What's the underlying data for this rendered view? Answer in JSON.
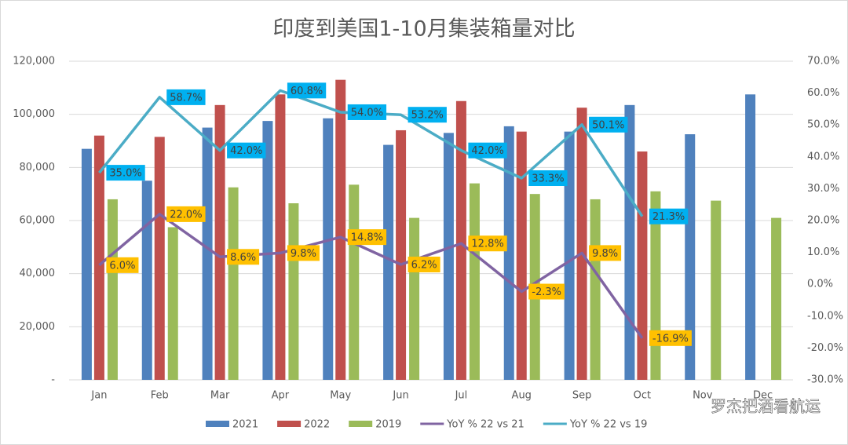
{
  "chart_data": {
    "type": "bar",
    "title": "印度到美国1-10月集装箱量对比",
    "watermark": "罗杰把酒看航运",
    "categories": [
      "Jan",
      "Feb",
      "Mar",
      "Apr",
      "May",
      "Jun",
      "Jul",
      "Aug",
      "Sep",
      "Oct",
      "Nov",
      "Dec"
    ],
    "series": [
      {
        "name": "2021",
        "color": "#4f81bd",
        "values": [
          87000,
          75000,
          95000,
          97500,
          98500,
          88500,
          93000,
          95500,
          93500,
          103500,
          92500,
          107500
        ]
      },
      {
        "name": "2022",
        "color": "#c0504d",
        "values": [
          92000,
          91500,
          103500,
          107500,
          113000,
          94000,
          105000,
          93500,
          102500,
          86000,
          null,
          null
        ]
      },
      {
        "name": "2019",
        "color": "#9bbb59",
        "values": [
          68000,
          57500,
          72500,
          66500,
          73500,
          61000,
          74000,
          70000,
          68000,
          71000,
          67500,
          61000
        ]
      },
      {
        "name": "YoY % 22 vs 21",
        "color": "#8064a2",
        "type": "line",
        "axis": "y2",
        "label_color": "#ffc000",
        "values": [
          6.0,
          22.0,
          8.6,
          9.8,
          14.8,
          6.2,
          12.8,
          -2.3,
          9.8,
          -16.9,
          null,
          null
        ],
        "value_labels": [
          "6.0%",
          "22.0%",
          "8.6%",
          "9.8%",
          "14.8%",
          "6.2%",
          "12.8%",
          "-2.3%",
          "9.8%",
          "-16.9%",
          null,
          null
        ]
      },
      {
        "name": "YoY % 22 vs 19",
        "color": "#4bacc6",
        "type": "line",
        "axis": "y2",
        "label_color": "#00b0f0",
        "values": [
          35.0,
          58.7,
          42.0,
          60.8,
          54.0,
          53.2,
          42.0,
          33.3,
          50.1,
          21.3,
          null,
          null
        ],
        "value_labels": [
          "35.0%",
          "58.7%",
          "42.0%",
          "60.8%",
          "54.0%",
          "53.2%",
          "42.0%",
          "33.3%",
          "50.1%",
          "21.3%",
          null,
          null
        ]
      }
    ],
    "ylim": [
      0,
      120000
    ],
    "yticks": [
      {
        "value": 0,
        "label": "-"
      },
      {
        "value": 20000,
        "label": "20,000"
      },
      {
        "value": 40000,
        "label": "40,000"
      },
      {
        "value": 60000,
        "label": "60,000"
      },
      {
        "value": 80000,
        "label": "80,000"
      },
      {
        "value": 100000,
        "label": "100,000"
      },
      {
        "value": 120000,
        "label": "120,000"
      }
    ],
    "y2lim": [
      -30,
      70
    ],
    "y2ticks": [
      {
        "value": -30,
        "label": "-30.0%"
      },
      {
        "value": -20,
        "label": "-20.0%"
      },
      {
        "value": -10,
        "label": "-10.0%"
      },
      {
        "value": 0,
        "label": "0.0%"
      },
      {
        "value": 10,
        "label": "10.0%"
      },
      {
        "value": 20,
        "label": "20.0%"
      },
      {
        "value": 30,
        "label": "30.0%"
      },
      {
        "value": 40,
        "label": "40.0%"
      },
      {
        "value": 50,
        "label": "50.0%"
      },
      {
        "value": 60,
        "label": "60.0%"
      },
      {
        "value": 70,
        "label": "70.0%"
      }
    ],
    "grid": true,
    "legend": "bottom"
  }
}
